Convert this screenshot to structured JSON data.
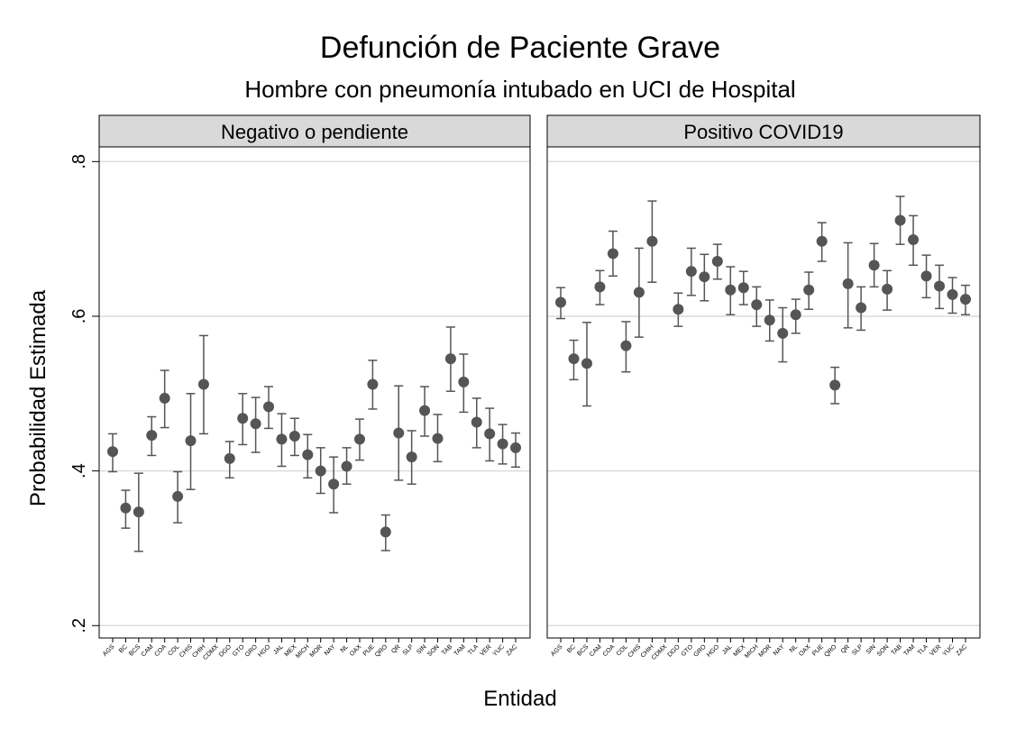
{
  "chart_data": {
    "type": "errorbar",
    "title": "Defunción de Paciente Grave",
    "subtitle": "Hombre con pneumonía intubado en UCI de Hospital",
    "x_label": "Entidad",
    "y_label": "Probabilidad Estimada",
    "categories": [
      "AGS",
      "BC",
      "BCS",
      "CAM",
      "COA",
      "COL",
      "CHIS",
      "CHIH",
      "CDMX",
      "DGO",
      "GTO",
      "GRO",
      "HGO",
      "JAL",
      "MEX",
      "MICH",
      "MOR",
      "NAY",
      "NL",
      "OAX",
      "PUE",
      "QRO",
      "QR",
      "SLP",
      "SIN",
      "SON",
      "TAB",
      "TAM",
      "TLA",
      "VER",
      "YUC",
      "ZAC"
    ],
    "ylim": [
      0.184,
      0.819
    ],
    "yticks": [
      {
        "value": 0.2,
        "label": ".2"
      },
      {
        "value": 0.4,
        "label": ".4"
      },
      {
        "value": 0.6,
        "label": ".6"
      },
      {
        "value": 0.8,
        "label": ".8"
      }
    ],
    "grid": true,
    "color": "#555555",
    "panels": [
      {
        "title": "Negativo o pendiente",
        "values": [
          0.425,
          0.352,
          0.347,
          0.446,
          0.494,
          0.367,
          0.439,
          0.512,
          null,
          0.416,
          0.468,
          0.461,
          0.483,
          0.441,
          0.445,
          0.421,
          0.4,
          0.383,
          0.406,
          0.441,
          0.512,
          0.321,
          0.449,
          0.418,
          0.478,
          0.442,
          0.545,
          0.515,
          0.463,
          0.448,
          0.435,
          0.43
        ],
        "lower": [
          0.399,
          0.326,
          0.296,
          0.42,
          0.456,
          0.333,
          0.376,
          0.448,
          null,
          0.391,
          0.434,
          0.424,
          0.455,
          0.406,
          0.42,
          0.391,
          0.371,
          0.346,
          0.383,
          0.414,
          0.48,
          0.297,
          0.388,
          0.383,
          0.445,
          0.412,
          0.503,
          0.476,
          0.43,
          0.413,
          0.409,
          0.405
        ],
        "upper": [
          0.448,
          0.375,
          0.397,
          0.47,
          0.53,
          0.399,
          0.5,
          0.575,
          null,
          0.438,
          0.5,
          0.495,
          0.509,
          0.474,
          0.468,
          0.447,
          0.43,
          0.418,
          0.43,
          0.467,
          0.543,
          0.343,
          0.51,
          0.452,
          0.509,
          0.473,
          0.586,
          0.551,
          0.494,
          0.481,
          0.46,
          0.449
        ]
      },
      {
        "title": "Positivo COVID19",
        "values": [
          0.618,
          0.545,
          0.539,
          0.638,
          0.681,
          0.562,
          0.631,
          0.697,
          null,
          0.609,
          0.658,
          0.651,
          0.671,
          0.634,
          0.637,
          0.615,
          0.595,
          0.578,
          0.602,
          0.634,
          0.697,
          0.511,
          0.642,
          0.611,
          0.666,
          0.635,
          0.724,
          0.699,
          0.652,
          0.639,
          0.628,
          0.622
        ],
        "lower": [
          0.597,
          0.518,
          0.484,
          0.615,
          0.652,
          0.528,
          0.573,
          0.644,
          null,
          0.587,
          0.627,
          0.62,
          0.648,
          0.602,
          0.615,
          0.587,
          0.568,
          0.541,
          0.578,
          0.609,
          0.671,
          0.487,
          0.585,
          0.582,
          0.638,
          0.608,
          0.693,
          0.666,
          0.624,
          0.61,
          0.604,
          0.602
        ],
        "upper": [
          0.637,
          0.569,
          0.592,
          0.659,
          0.71,
          0.593,
          0.688,
          0.749,
          null,
          0.63,
          0.688,
          0.68,
          0.693,
          0.664,
          0.658,
          0.638,
          0.621,
          0.611,
          0.622,
          0.657,
          0.721,
          0.534,
          0.695,
          0.638,
          0.694,
          0.659,
          0.755,
          0.73,
          0.679,
          0.666,
          0.65,
          0.64
        ]
      }
    ]
  }
}
